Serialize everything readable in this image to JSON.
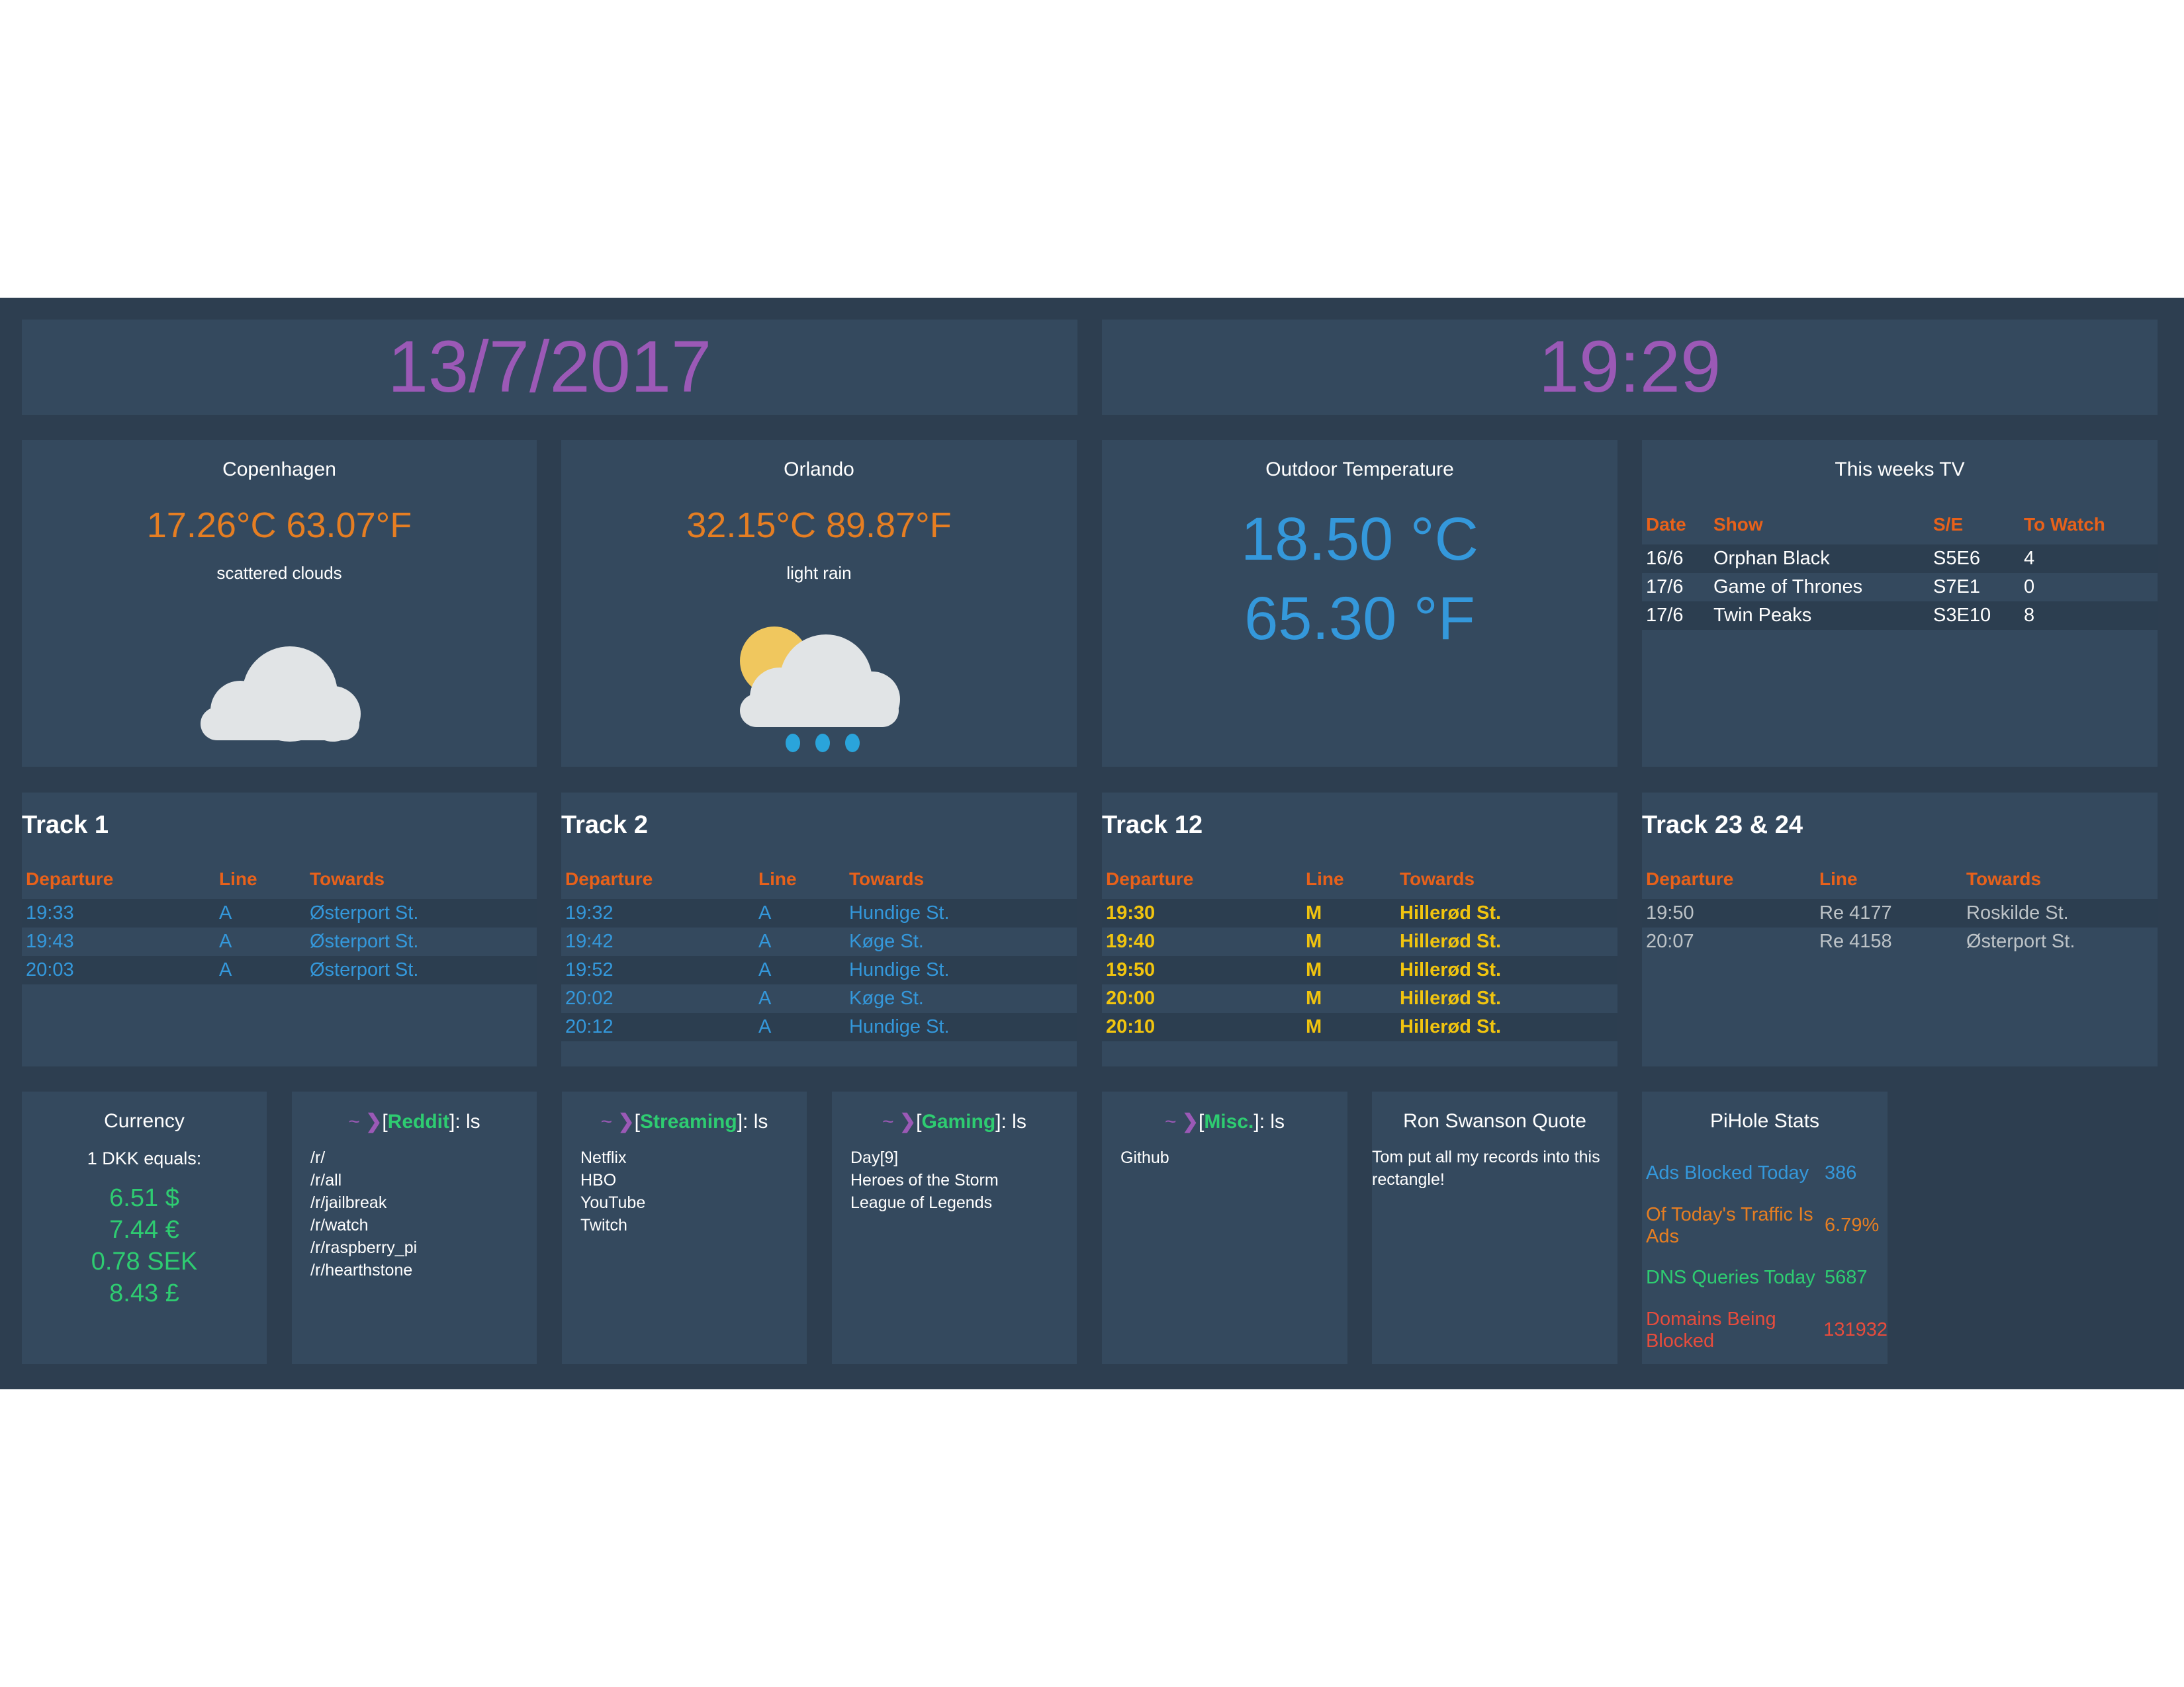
{
  "date": "13/7/2017",
  "time": "19:29",
  "weather": [
    {
      "city": "Copenhagen",
      "temp": "17.26°C 63.07°F",
      "desc": "scattered clouds",
      "icon": "cloud-icon"
    },
    {
      "city": "Orlando",
      "temp": "32.15°C 89.87°F",
      "desc": "light rain",
      "icon": "sun-cloud-rain-icon"
    }
  ],
  "outdoor": {
    "title": "Outdoor Temperature",
    "celsius": "18.50 °C",
    "fahrenheit": "65.30 °F"
  },
  "tv": {
    "title": "This weeks TV",
    "headers": [
      "Date",
      "Show",
      "S/E",
      "To Watch"
    ],
    "rows": [
      [
        "16/6",
        "Orphan Black",
        "S5E6",
        "4"
      ],
      [
        "17/6",
        "Game of Thrones",
        "S7E1",
        "0"
      ],
      [
        "17/6",
        "Twin Peaks",
        "S3E10",
        "8"
      ]
    ]
  },
  "tracks": [
    {
      "title": "Track 1",
      "headers": [
        "Departure",
        "Line",
        "Towards"
      ],
      "rows": [
        [
          "19:33",
          "A",
          "Østerport St."
        ],
        [
          "19:43",
          "A",
          "Østerport St."
        ],
        [
          "20:03",
          "A",
          "Østerport St."
        ]
      ]
    },
    {
      "title": "Track 2",
      "headers": [
        "Departure",
        "Line",
        "Towards"
      ],
      "rows": [
        [
          "19:32",
          "A",
          "Hundige St."
        ],
        [
          "19:42",
          "A",
          "Køge St."
        ],
        [
          "19:52",
          "A",
          "Hundige St."
        ],
        [
          "20:02",
          "A",
          "Køge St."
        ],
        [
          "20:12",
          "A",
          "Hundige St."
        ]
      ]
    },
    {
      "title": "Track 12",
      "headers": [
        "Departure",
        "Line",
        "Towards"
      ],
      "rows": [
        [
          "19:30",
          "M",
          "Hillerød St."
        ],
        [
          "19:40",
          "M",
          "Hillerød St."
        ],
        [
          "19:50",
          "M",
          "Hillerød St."
        ],
        [
          "20:00",
          "M",
          "Hillerød St."
        ],
        [
          "20:10",
          "M",
          "Hillerød St."
        ]
      ]
    },
    {
      "title": "Track 23 & 24",
      "headers": [
        "Departure",
        "Line",
        "Towards"
      ],
      "rows": [
        [
          "19:50",
          "Re 4177",
          "Roskilde St."
        ],
        [
          "20:07",
          "Re 4158",
          "Østerport St."
        ]
      ]
    }
  ],
  "currency": {
    "title": "Currency",
    "label": "1 DKK equals:",
    "values": [
      "6.51 $",
      "7.44 €",
      "0.78 SEK",
      "8.43 £"
    ]
  },
  "terminals": [
    {
      "prefix": "~",
      "chevron": "❯",
      "category": "Reddit",
      "command": ": ls",
      "items": [
        "/r/",
        "/r/all",
        "/r/jailbreak",
        "/r/watch",
        "/r/raspberry_pi",
        "/r/hearthstone"
      ]
    },
    {
      "prefix": "~",
      "chevron": "❯",
      "category": "Streaming",
      "command": ": ls",
      "items": [
        "Netflix",
        "HBO",
        "YouTube",
        "Twitch"
      ]
    },
    {
      "prefix": "~",
      "chevron": "❯",
      "category": "Gaming",
      "command": ": ls",
      "items": [
        "Day[9]",
        "Heroes of the Storm",
        "League of Legends"
      ]
    },
    {
      "prefix": "~",
      "chevron": "❯",
      "category": "Misc.",
      "command": ": ls",
      "items": [
        "Github"
      ]
    }
  ],
  "quote": {
    "title": "Ron Swanson Quote",
    "text": "Tom put all my records into this rectangle!"
  },
  "pihole": {
    "title": "PiHole Stats",
    "stats": [
      {
        "label": "Ads Blocked Today",
        "value": "386",
        "color": "#3498db"
      },
      {
        "label": "Of Today's Traffic Is Ads",
        "value": "6.79%",
        "color": "#e67e22"
      },
      {
        "label": "DNS Queries Today",
        "value": "5687",
        "color": "#2ecc71"
      },
      {
        "label": "Domains Being Blocked",
        "value": "131932",
        "color": "#e74c3c"
      }
    ]
  }
}
